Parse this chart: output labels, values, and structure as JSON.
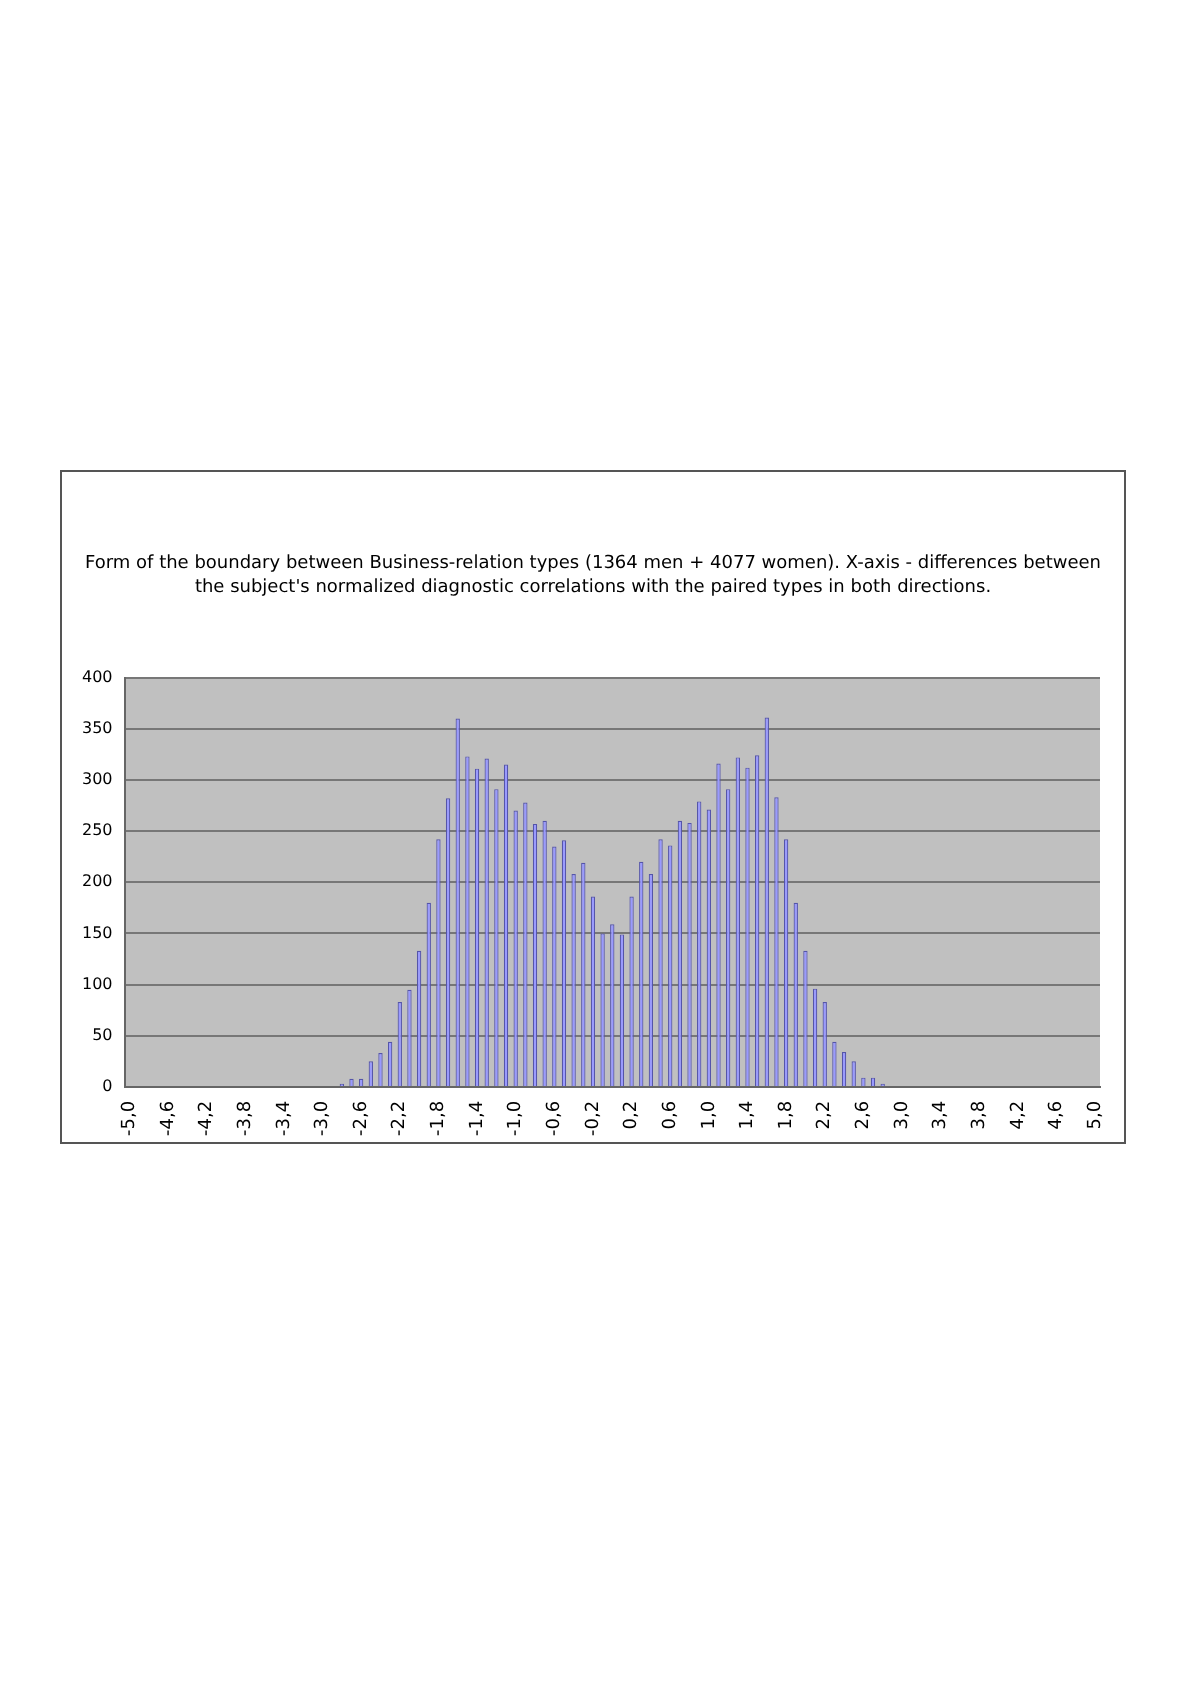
{
  "chart_data": {
    "type": "bar",
    "title": "Form of the boundary between Business-relation types (1364 men + 4077 women). X-axis - differences between the subject's normalized diagnostic correlations with the paired types in both directions.",
    "categories": [
      "-5,0",
      null,
      null,
      null,
      "-4,6",
      null,
      null,
      null,
      "-4,2",
      null,
      null,
      null,
      "-3,8",
      null,
      null,
      null,
      "-3,4",
      null,
      null,
      null,
      "-3,0",
      null,
      null,
      null,
      "-2,6",
      null,
      null,
      null,
      "-2,2",
      null,
      null,
      null,
      "-1,8",
      null,
      null,
      null,
      "-1,4",
      null,
      null,
      null,
      "-1,0",
      null,
      null,
      null,
      "-0,6",
      null,
      null,
      null,
      "-0,2",
      null,
      null,
      null,
      "0,2",
      null,
      null,
      null,
      "0,6",
      null,
      null,
      null,
      "1,0",
      null,
      null,
      null,
      "1,4",
      null,
      null,
      null,
      "1,8",
      null,
      null,
      null,
      "2,2",
      null,
      null,
      null,
      "2,6",
      null,
      null,
      null,
      "3,0",
      null,
      null,
      null,
      "3,4",
      null,
      null,
      null,
      "3,8",
      null,
      null,
      null,
      "4,2",
      null,
      null,
      null,
      "4,6",
      null,
      null,
      null,
      "5,0"
    ],
    "values": [
      0,
      0,
      0,
      0,
      0,
      0,
      0,
      0,
      0,
      0,
      0,
      0,
      0,
      0,
      0,
      0,
      0,
      0,
      0,
      0,
      0,
      0,
      3,
      8,
      8,
      25,
      33,
      44,
      83,
      95,
      133,
      180,
      242,
      282,
      360,
      323,
      311,
      321,
      291,
      315,
      270,
      278,
      257,
      260,
      235,
      241,
      208,
      219,
      186,
      150,
      159,
      149,
      186,
      220,
      208,
      242,
      236,
      260,
      258,
      279,
      271,
      316,
      291,
      322,
      312,
      324,
      361,
      283,
      242,
      180,
      133,
      96,
      83,
      44,
      34,
      25,
      9,
      9,
      3,
      0,
      0,
      0,
      0,
      0,
      0,
      0,
      0,
      0,
      0,
      0,
      0,
      0,
      0,
      0,
      0,
      0,
      0,
      0,
      0,
      0,
      0
    ],
    "color": "#9999ff",
    "ylim": [
      0,
      400
    ],
    "yticks": [
      0,
      50,
      100,
      150,
      200,
      250,
      300,
      350,
      400
    ],
    "grid": "y",
    "legend": false
  }
}
